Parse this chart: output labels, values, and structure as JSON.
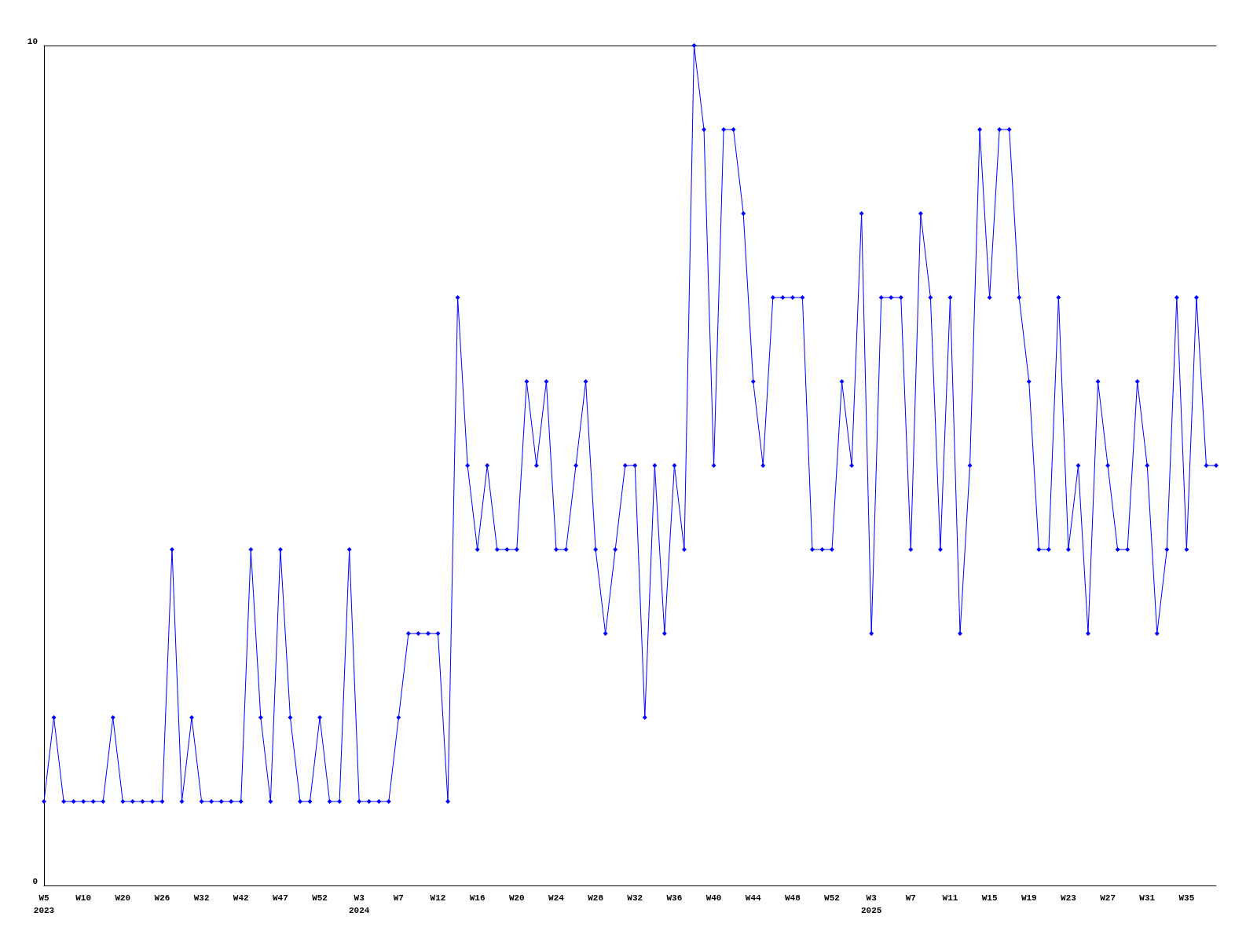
{
  "chart_data": {
    "type": "line",
    "categories": [
      "W5\n2023",
      null,
      null,
      null,
      "W10",
      null,
      null,
      null,
      "W20",
      null,
      null,
      null,
      "W26",
      null,
      null,
      null,
      "W32",
      null,
      null,
      null,
      "W42",
      null,
      null,
      null,
      "W47",
      null,
      null,
      null,
      "W52",
      null,
      null,
      null,
      "W3\n2024",
      null,
      null,
      null,
      "W7",
      null,
      null,
      null,
      "W12",
      null,
      null,
      null,
      "W16",
      null,
      null,
      null,
      "W20",
      null,
      null,
      null,
      "W24",
      null,
      null,
      null,
      "W28",
      null,
      null,
      null,
      "W32",
      null,
      null,
      null,
      "W36",
      null,
      null,
      null,
      "W40",
      null,
      null,
      null,
      "W44",
      null,
      null,
      null,
      "W48",
      null,
      null,
      null,
      "W52",
      null,
      null,
      null,
      "W3\n2025",
      null,
      null,
      null,
      "W7",
      null,
      null,
      null,
      "W11",
      null,
      null,
      null,
      "W15",
      null,
      null,
      null,
      "W19",
      null,
      null,
      null,
      "W23",
      null,
      null,
      null,
      "W27",
      null,
      null,
      null,
      "W31",
      null,
      null,
      null,
      "W35",
      null,
      null,
      null
    ],
    "series": [
      {
        "color": "#0000ff",
        "values": [
          1,
          2,
          1,
          1,
          1,
          1,
          1,
          2,
          1,
          1,
          1,
          1,
          1,
          4,
          1,
          2,
          1,
          1,
          1,
          1,
          1,
          4,
          2,
          1,
          4,
          2,
          1,
          1,
          2,
          1,
          1,
          4,
          1,
          1,
          1,
          1,
          2,
          3,
          3,
          3,
          3,
          1,
          7,
          5,
          4,
          5,
          4,
          4,
          4,
          6,
          5,
          6,
          4,
          4,
          5,
          6,
          4,
          3,
          4,
          5,
          5,
          2,
          5,
          3,
          5,
          4,
          10,
          9,
          5,
          9,
          9,
          8,
          6,
          5,
          7,
          7,
          7,
          7,
          4,
          4,
          4,
          6,
          5,
          8,
          3,
          7,
          7,
          7,
          4,
          8,
          7,
          4,
          7,
          3,
          5,
          9,
          7,
          9,
          9,
          7,
          6,
          4,
          4,
          7,
          4,
          5,
          3,
          6,
          5,
          4,
          4,
          6,
          5,
          3,
          4,
          7,
          4,
          7,
          5,
          5
        ]
      }
    ],
    "ylim": [
      0,
      10
    ],
    "yticks": [
      0,
      10
    ],
    "grid": false,
    "marker": "diamond",
    "line_style": "solid"
  }
}
